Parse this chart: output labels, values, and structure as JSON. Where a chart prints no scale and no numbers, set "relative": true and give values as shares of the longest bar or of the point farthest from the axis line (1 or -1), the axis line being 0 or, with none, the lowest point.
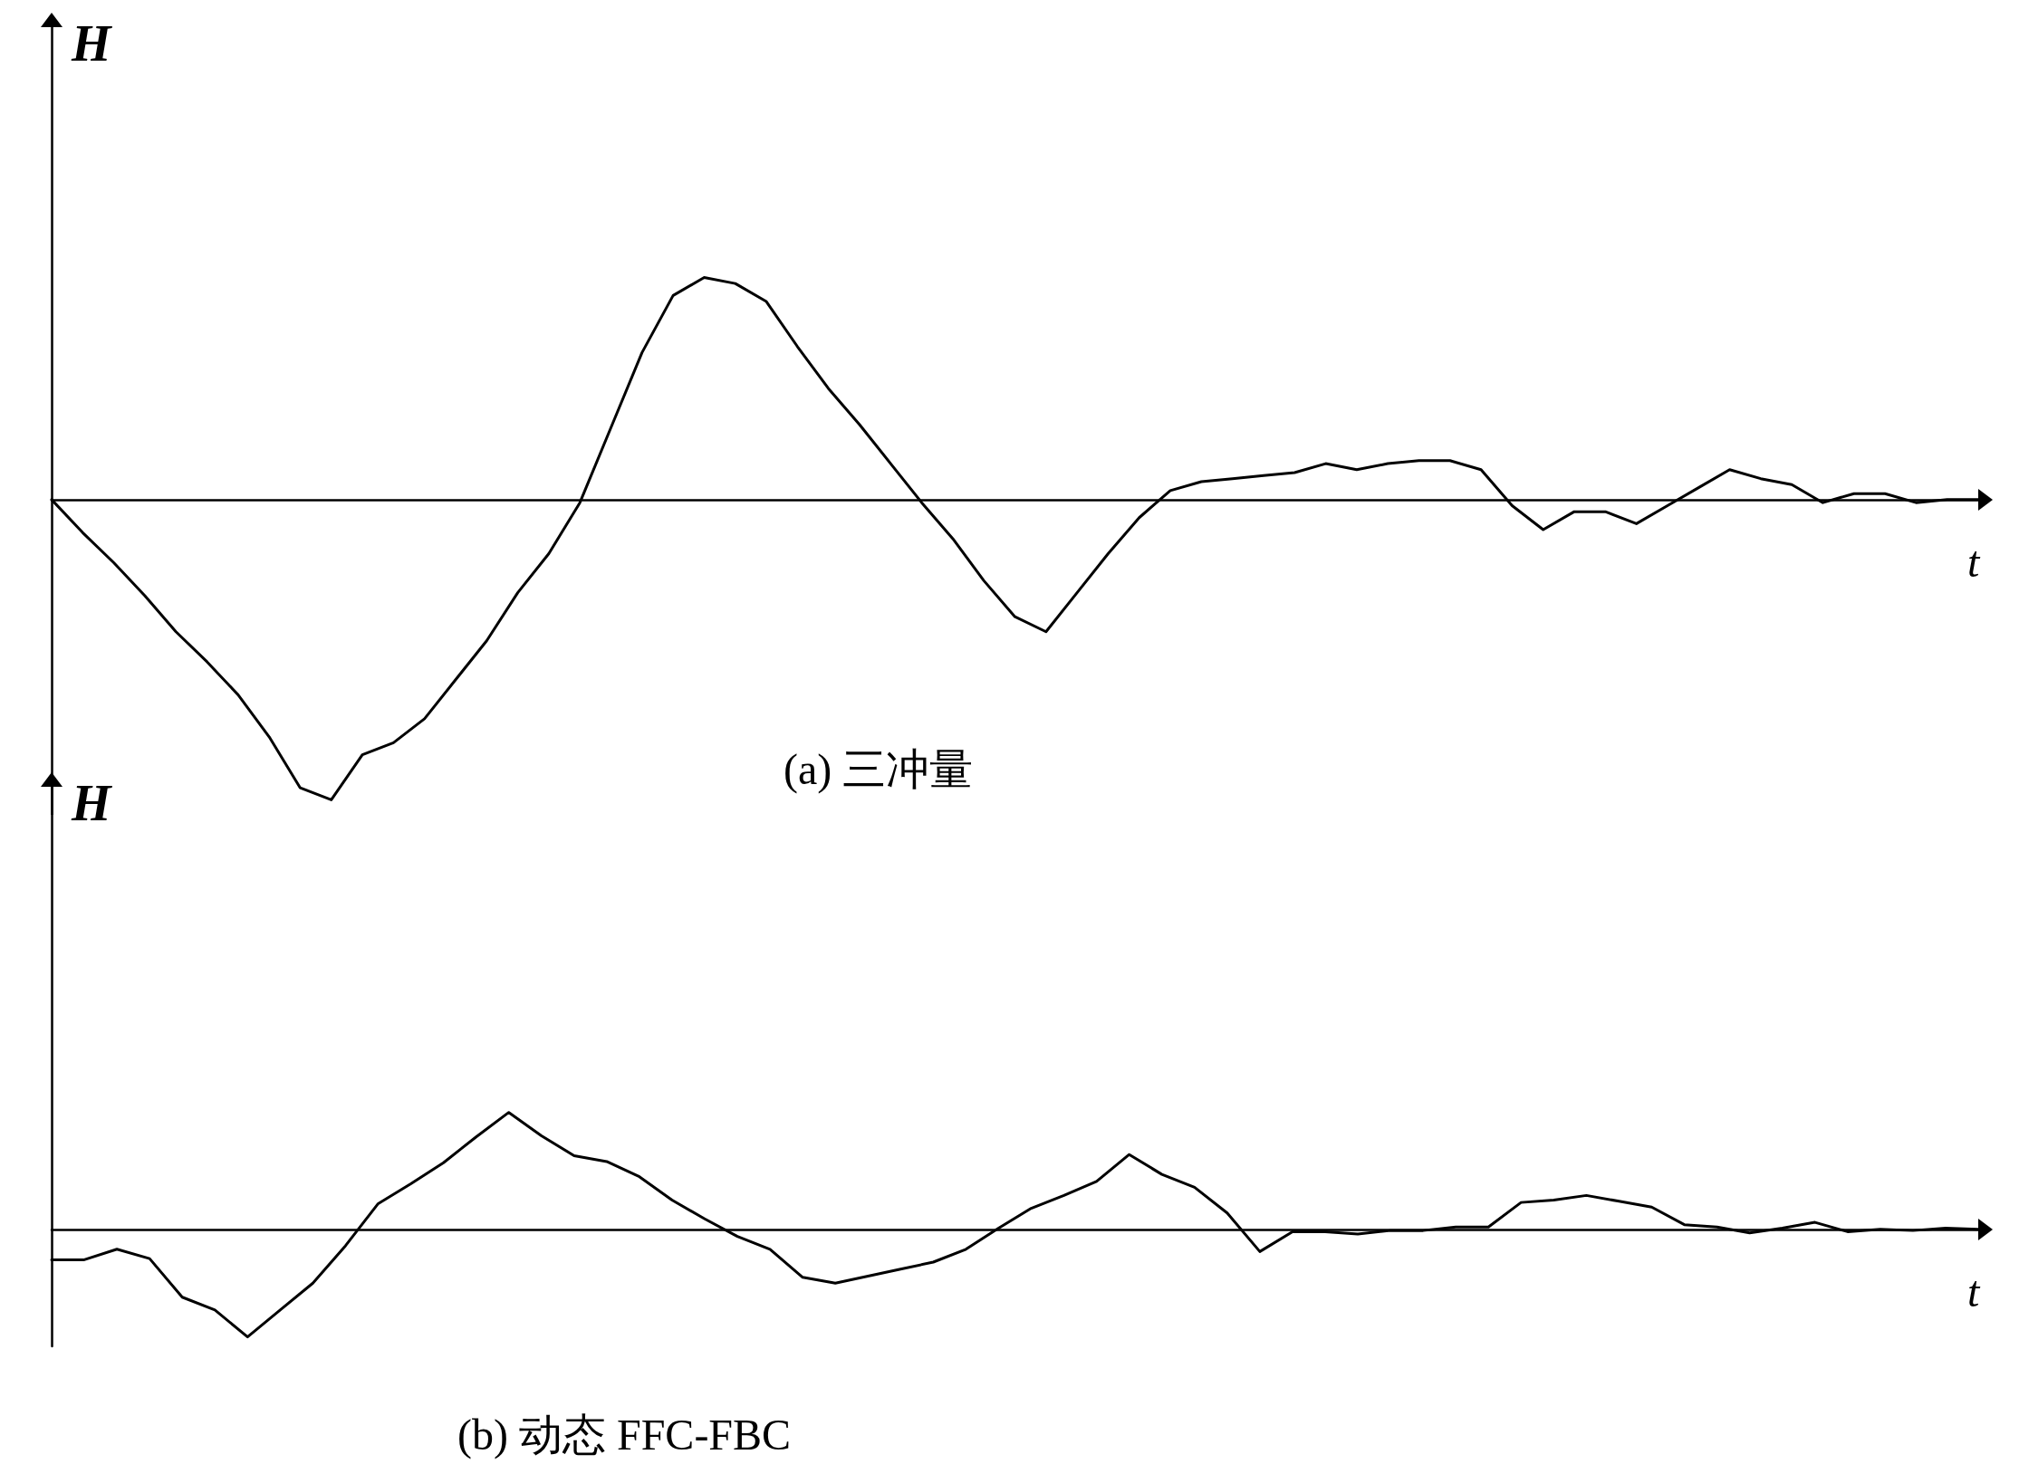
{
  "chart_data": [
    {
      "type": "line",
      "title": "(a) 三冲量",
      "ylabel": "H",
      "xlabel": "t",
      "relative": true,
      "marker": "none",
      "line_style": "solid",
      "categories": [
        null,
        null,
        null,
        null,
        null,
        null,
        null,
        null,
        null,
        null,
        null,
        null,
        null,
        null,
        null,
        null,
        null,
        null,
        null,
        null,
        null,
        null,
        null,
        null,
        null,
        null,
        null,
        null,
        null,
        null,
        null,
        null,
        null,
        null,
        null,
        null,
        null,
        null,
        null,
        null,
        null,
        null,
        null,
        null,
        null,
        null,
        null,
        null,
        null,
        null,
        null,
        null,
        null,
        null,
        null,
        null,
        null,
        null,
        null,
        null,
        null,
        null,
        null
      ],
      "series": [
        {
          "color": "#000000",
          "values": [
            0,
            -0.11,
            -0.21,
            -0.32,
            -0.44,
            -0.54,
            -0.65,
            -0.79,
            -0.96,
            -1,
            -0.85,
            -0.81,
            -0.73,
            -0.6,
            -0.47,
            -0.31,
            -0.18,
            -0.01,
            0.24,
            0.49,
            0.68,
            0.74,
            0.72,
            0.66,
            0.51,
            0.37,
            0.25,
            0.12,
            -0.01,
            -0.13,
            -0.27,
            -0.39,
            -0.44,
            -0.31,
            -0.18,
            -0.06,
            0.03,
            0.06,
            0.07,
            0.08,
            0.09,
            0.12,
            0.1,
            0.12,
            0.13,
            0.13,
            0.1,
            -0.02,
            -0.1,
            -0.04,
            -0.04,
            -0.08,
            -0.02,
            0.04,
            0.1,
            0.07,
            0.05,
            -0.01,
            0.02,
            0.02,
            -0.01,
            0,
            0
          ]
        }
      ]
    },
    {
      "type": "line",
      "title": "(b) 动态 FFC-FBC",
      "ylabel": "H",
      "xlabel": "t",
      "relative": true,
      "marker": "none",
      "line_style": "solid",
      "categories": [
        null,
        null,
        null,
        null,
        null,
        null,
        null,
        null,
        null,
        null,
        null,
        null,
        null,
        null,
        null,
        null,
        null,
        null,
        null,
        null,
        null,
        null,
        null,
        null,
        null,
        null,
        null,
        null,
        null,
        null,
        null,
        null,
        null,
        null,
        null,
        null,
        null,
        null,
        null,
        null,
        null,
        null,
        null,
        null,
        null,
        null,
        null,
        null,
        null,
        null,
        null,
        null,
        null,
        null,
        null,
        null,
        null,
        null,
        null,
        null
      ],
      "series": [
        {
          "color": "#000000",
          "values": [
            -0.26,
            -0.26,
            -0.17,
            -0.25,
            -0.58,
            -0.69,
            -0.92,
            -0.69,
            -0.46,
            -0.14,
            0.22,
            0.39,
            0.57,
            0.79,
            1,
            0.8,
            0.63,
            0.58,
            0.45,
            0.25,
            0.09,
            -0.06,
            -0.17,
            -0.41,
            -0.46,
            -0.4,
            -0.34,
            -0.28,
            -0.17,
            0.01,
            0.18,
            0.29,
            0.41,
            0.64,
            0.47,
            0.36,
            0.14,
            -0.19,
            -0.02,
            -0.02,
            -0.04,
            -0.01,
            -0.01,
            0.02,
            0.02,
            0.23,
            0.25,
            0.29,
            0.24,
            0.19,
            0.04,
            0.02,
            -0.03,
            0.01,
            0.06,
            -0.02,
            0,
            -0.01,
            0.01,
            0
          ]
        }
      ]
    }
  ]
}
